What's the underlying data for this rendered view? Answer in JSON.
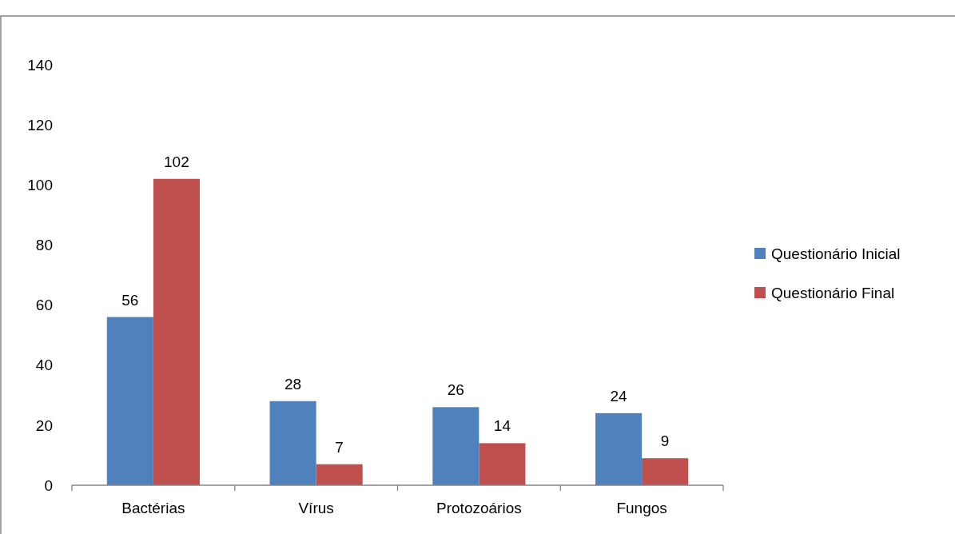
{
  "chart_data": {
    "type": "bar",
    "categories": [
      "Bactérias",
      "Vírus",
      "Protozoários",
      "Fungos"
    ],
    "series": [
      {
        "name": "Questionário Inicial",
        "color": "#4f81bd",
        "values": [
          56,
          28,
          26,
          24
        ]
      },
      {
        "name": "Questionário Final",
        "color": "#c0504d",
        "values": [
          102,
          7,
          14,
          9
        ]
      }
    ],
    "ylim": [
      0,
      140
    ],
    "yticks": [
      0,
      20,
      40,
      60,
      80,
      100,
      120,
      140
    ],
    "grid": false,
    "legend": "right",
    "data_labels": true
  }
}
